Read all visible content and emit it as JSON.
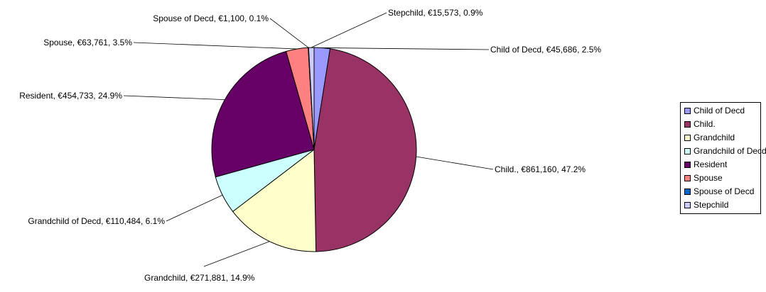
{
  "chart_data": {
    "type": "pie",
    "legend_position": "right",
    "slices": [
      {
        "name": "Child of Decd",
        "value": 45686,
        "label": "Child of Decd, €45,686, 2.5%",
        "color": "#9999ff"
      },
      {
        "name": "Child.",
        "value": 861160,
        "label": "Child., €861,160, 47.2%",
        "color": "#993366"
      },
      {
        "name": "Grandchild",
        "value": 271881,
        "label": "Grandchild, €271,881, 14.9%",
        "color": "#ffffcc"
      },
      {
        "name": "Grandchild of Decd",
        "value": 110484,
        "label": "Grandchild of Decd, €110,484, 6.1%",
        "color": "#ccffff"
      },
      {
        "name": "Resident",
        "value": 454733,
        "label": "Resident, €454,733, 24.9%",
        "color": "#660066"
      },
      {
        "name": "Spouse",
        "value": 63761,
        "label": "Spouse, €63,761, 3.5%",
        "color": "#ff8080"
      },
      {
        "name": "Spouse of Decd",
        "value": 1100,
        "label": "Spouse of Decd, €1,100, 0.1%",
        "color": "#0066cc"
      },
      {
        "name": "Stepchild",
        "value": 15573,
        "label": "Stepchild, €15,573, 0.9%",
        "color": "#ccccff"
      }
    ]
  }
}
